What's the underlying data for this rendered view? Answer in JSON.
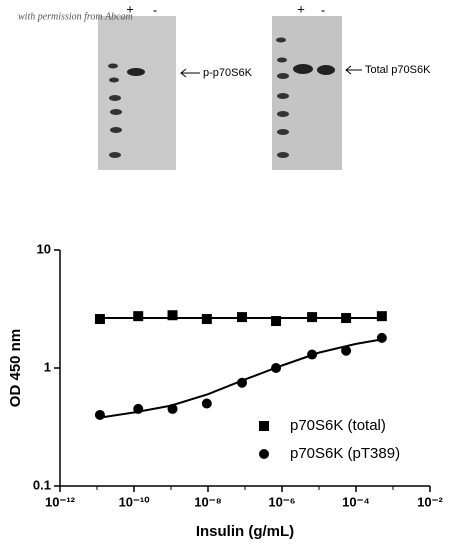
{
  "image_caption": "with permission from Abcam",
  "blots": [
    {
      "plus": "+",
      "minus": "-",
      "label": "p-p70S6K"
    },
    {
      "plus": "+",
      "minus": "-",
      "label": "Total p70S6K"
    }
  ],
  "chart_data": {
    "type": "scatter",
    "xlabel": "Insulin (g/mL)",
    "ylabel": "OD 450 nm",
    "xscale": "log",
    "yscale": "log",
    "xlim": [
      1e-12,
      0.01
    ],
    "xticks": [
      {
        "value": 1e-12,
        "label": "10⁻¹²"
      },
      {
        "value": 1e-10,
        "label": "10⁻¹⁰"
      },
      {
        "value": 1e-08,
        "label": "10⁻⁸"
      },
      {
        "value": 1e-06,
        "label": "10⁻⁶"
      },
      {
        "value": 0.0001,
        "label": "10⁻⁴"
      },
      {
        "value": 0.01,
        "label": "10⁻²"
      }
    ],
    "ylim": [
      0.1,
      10
    ],
    "yticks": [
      0.1,
      1,
      10
    ],
    "legend": "lower right",
    "series": [
      {
        "name": "p70S6K (total)",
        "marker": "square",
        "color": "#000000",
        "x": [
          1.2e-11,
          1.3e-10,
          1.1e-09,
          9.3e-09,
          8.3e-08,
          6.9e-07,
          6.5e-06,
          5.4e-05,
          0.0005
        ],
        "values": [
          2.6,
          2.75,
          2.8,
          2.6,
          2.7,
          2.5,
          2.7,
          2.65,
          2.75
        ],
        "fit": {
          "x": [
            1.2e-11,
            0.0005
          ],
          "values": [
            2.65,
            2.65
          ]
        }
      },
      {
        "name": "p70S6K (pT389)",
        "marker": "circle",
        "color": "#000000",
        "x": [
          1.2e-11,
          1.3e-10,
          1.1e-09,
          9.3e-09,
          8.3e-08,
          6.9e-07,
          6.5e-06,
          5.4e-05,
          0.0005
        ],
        "values": [
          0.4,
          0.45,
          0.45,
          0.5,
          0.75,
          1.0,
          1.3,
          1.4,
          1.8
        ],
        "fit": {
          "x": [
            1.2e-11,
            1e-10,
            1e-09,
            1e-08,
            1e-07,
            1e-06,
            1e-05,
            0.0001,
            0.0005
          ],
          "values": [
            0.38,
            0.42,
            0.48,
            0.6,
            0.8,
            1.05,
            1.35,
            1.6,
            1.75
          ]
        }
      }
    ]
  }
}
